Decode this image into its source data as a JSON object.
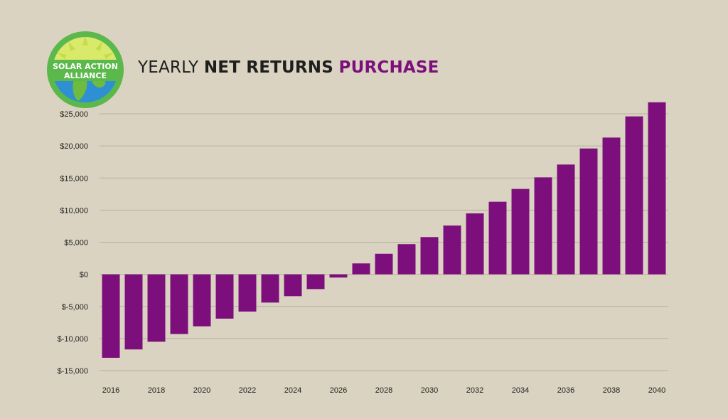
{
  "header": {
    "logo_text": [
      "SOLAR ACTION",
      "ALLIANCE"
    ],
    "title_parts": [
      "YEARLY",
      "NET RETURNS",
      "PURCHASE"
    ]
  },
  "colors": {
    "background": "#dbd3c1",
    "bar": "#7c0f7c",
    "grid": "#b7b0a0",
    "title_accent": "#7c0f7c",
    "logo_ring": "#5bb84b",
    "logo_sky": "#d9e96a",
    "logo_ocean": "#2f8fd3",
    "logo_land": "#6dbb3f"
  },
  "chart_data": {
    "type": "bar",
    "title": "YEARLY NET RETURNS PURCHASE",
    "x": [
      2016,
      2017,
      2018,
      2019,
      2020,
      2021,
      2022,
      2023,
      2024,
      2025,
      2026,
      2027,
      2028,
      2029,
      2030,
      2031,
      2032,
      2033,
      2034,
      2035,
      2036,
      2037,
      2038,
      2039,
      2040
    ],
    "values": [
      -13000,
      -11700,
      -10500,
      -9300,
      -8100,
      -6900,
      -5800,
      -4400,
      -3400,
      -2300,
      -500,
      1700,
      3200,
      4700,
      5800,
      7600,
      9500,
      11300,
      13300,
      15100,
      17100,
      19600,
      21300,
      24600,
      26800
    ],
    "x_tick_labels": [
      "2016",
      "2018",
      "2020",
      "2022",
      "2024",
      "2026",
      "2028",
      "2030",
      "2032",
      "2034",
      "2036",
      "2038",
      "2040"
    ],
    "y_ticks": [
      25000,
      20000,
      15000,
      10000,
      5000,
      0,
      -5000,
      -10000,
      -15000
    ],
    "y_tick_labels": [
      "$25,000",
      "$20,000",
      "$15,000",
      "$10,000",
      "$5,000",
      "$0",
      "$-5,000",
      "$-10,000",
      "$-15,000"
    ],
    "ylim": [
      -15000,
      25000
    ],
    "xlabel": "",
    "ylabel": "",
    "grid": true,
    "legend": "none"
  }
}
